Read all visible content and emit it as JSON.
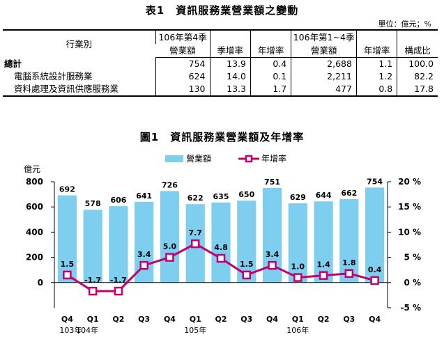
{
  "table": {
    "title": "表1　資訊服務業營業額之變動",
    "unit": "單位：億元；%",
    "header": {
      "industry": "行業別",
      "q4_group": "106年第4季",
      "q4_revenue": "營業額",
      "q4_qoq": "季增率",
      "q4_yoy": "年增率",
      "ytd_group": "106年第1~4季",
      "ytd_revenue": "營業額",
      "ytd_yoy": "年增率",
      "ytd_share": "構成比"
    },
    "rows": [
      {
        "name": "總計",
        "q4_rev": "754",
        "q4_qoq": "13.9",
        "q4_yoy": "0.4",
        "ytd_rev": "2,688",
        "ytd_yoy": "1.1",
        "share": "100.0"
      },
      {
        "name": "電腦系統設計服務業",
        "q4_rev": "624",
        "q4_qoq": "14.0",
        "q4_yoy": "0.1",
        "ytd_rev": "2,211",
        "ytd_yoy": "1.2",
        "share": "82.2"
      },
      {
        "name": "資料處理及資訊供應服務業",
        "q4_rev": "130",
        "q4_qoq": "13.3",
        "q4_yoy": "1.7",
        "ytd_rev": "477",
        "ytd_yoy": "0.8",
        "share": "17.8"
      }
    ]
  },
  "chart_title": "圖1　資訊服務業營業額及年增率",
  "chart_data": {
    "type": "bar",
    "categories": [
      "Q4",
      "Q1",
      "Q2",
      "Q3",
      "Q4",
      "Q1",
      "Q2",
      "Q3",
      "Q4",
      "Q1",
      "Q2",
      "Q3",
      "Q4"
    ],
    "year_labels": [
      {
        "text": "103年",
        "index": 0
      },
      {
        "text": "104年",
        "index": 1
      },
      {
        "text": "105年",
        "index": 5
      },
      {
        "text": "106年",
        "index": 9
      }
    ],
    "series": [
      {
        "name": "營業額",
        "type": "bar",
        "axis": "left",
        "color": "#7ecfef",
        "values": [
          692,
          578,
          606,
          641,
          726,
          622,
          635,
          650,
          751,
          629,
          644,
          662,
          754
        ]
      },
      {
        "name": "年增率",
        "type": "line",
        "axis": "right",
        "color": "#c2006e",
        "values": [
          1.5,
          -1.7,
          -1.7,
          3.4,
          5.0,
          7.7,
          4.8,
          1.5,
          3.4,
          1.0,
          1.4,
          1.8,
          0.4
        ]
      }
    ],
    "bar_labels": [
      "692",
      "578",
      "606",
      "641",
      "726",
      "622",
      "635",
      "650",
      "751",
      "629",
      "644",
      "662",
      "754"
    ],
    "line_labels": [
      "1.5",
      "-1.7",
      "-1.7",
      "3.4",
      "5.0",
      "7.7",
      "4.8",
      "1.5",
      "3.4",
      "1.0",
      "1.4",
      "1.8",
      "0.4"
    ],
    "ylabel": "億元",
    "y_left": {
      "min": -200,
      "max": 800,
      "ticks": [
        0,
        200,
        400,
        600,
        800
      ],
      "tick_labels": [
        "0",
        "200",
        "400",
        "600",
        "800"
      ]
    },
    "y_right": {
      "min": -5,
      "max": 20,
      "ticks": [
        -5,
        0,
        5,
        10,
        15,
        20
      ],
      "tick_labels": [
        "-5 %",
        "0 %",
        "5 %",
        "10 %",
        "15 %",
        "20 %"
      ]
    },
    "legend_position": "top-center",
    "grid": false
  }
}
